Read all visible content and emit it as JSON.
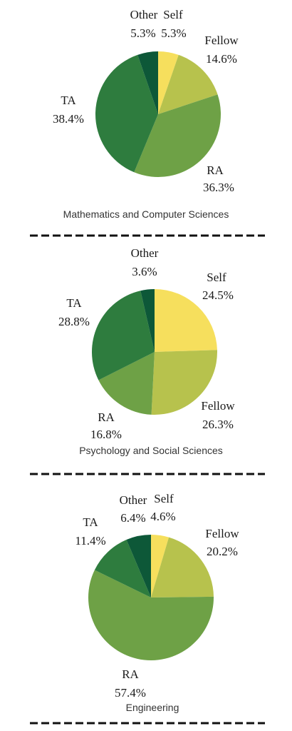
{
  "chart_data": [
    {
      "type": "pie",
      "title": "Mathematics and Computer Sciences",
      "categories": [
        "Self",
        "Fellow",
        "RA",
        "TA",
        "Other"
      ],
      "values": [
        5.3,
        14.6,
        36.3,
        38.4,
        5.3
      ],
      "labels": [
        "5.3%",
        "14.6%",
        "36.3%",
        "38.4%",
        "5.3%"
      ],
      "colors": [
        "#f6df5d",
        "#b7c24d",
        "#6ea146",
        "#2e7c3e",
        "#0d5838"
      ]
    },
    {
      "type": "pie",
      "title": "Psychology and Social Sciences",
      "categories": [
        "Self",
        "Fellow",
        "RA",
        "TA",
        "Other"
      ],
      "values": [
        24.5,
        26.3,
        16.8,
        28.8,
        3.6
      ],
      "labels": [
        "24.5%",
        "26.3%",
        "16.8%",
        "28.8%",
        "3.6%"
      ],
      "colors": [
        "#f6df5d",
        "#b7c24d",
        "#6ea146",
        "#2e7c3e",
        "#0d5838"
      ]
    },
    {
      "type": "pie",
      "title": "Engineering",
      "categories": [
        "Self",
        "Fellow",
        "RA",
        "TA",
        "Other"
      ],
      "values": [
        4.6,
        20.2,
        57.4,
        11.4,
        6.4
      ],
      "labels": [
        "4.6%",
        "20.2%",
        "57.4%",
        "11.4%",
        "6.4%"
      ],
      "colors": [
        "#f6df5d",
        "#b7c24d",
        "#6ea146",
        "#2e7c3e",
        "#0d5838"
      ]
    }
  ]
}
